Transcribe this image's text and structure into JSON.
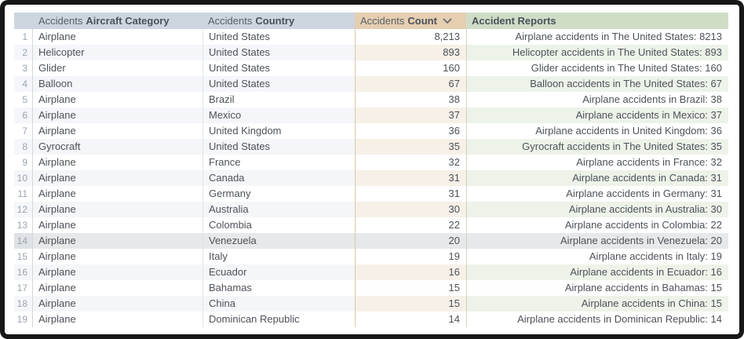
{
  "table": {
    "columns": [
      {
        "id": "index",
        "label_prefix": "",
        "label": ""
      },
      {
        "id": "aircraft_category",
        "label_prefix": "Accidents",
        "label": "Aircraft Category"
      },
      {
        "id": "country",
        "label_prefix": "Accidents",
        "label": "Country"
      },
      {
        "id": "count",
        "label_prefix": "Accidents",
        "label": "Count",
        "sort": "descending",
        "sort_icon": "chevron-down"
      },
      {
        "id": "reports",
        "label_prefix": "",
        "label": "Accident Reports"
      }
    ],
    "highlighted_row": 14,
    "rows": [
      {
        "index": 1,
        "category": "Airplane",
        "country": "United States",
        "count": "8,213",
        "report": "Airplane accidents in The United States: 8213"
      },
      {
        "index": 2,
        "category": "Helicopter",
        "country": "United States",
        "count": "893",
        "report": "Helicopter accidents in The United States: 893"
      },
      {
        "index": 3,
        "category": "Glider",
        "country": "United States",
        "count": "160",
        "report": "Glider accidents in The United States: 160"
      },
      {
        "index": 4,
        "category": "Balloon",
        "country": "United States",
        "count": "67",
        "report": "Balloon accidents in The United States: 67"
      },
      {
        "index": 5,
        "category": "Airplane",
        "country": "Brazil",
        "count": "38",
        "report": "Airplane accidents in Brazil: 38"
      },
      {
        "index": 6,
        "category": "Airplane",
        "country": "Mexico",
        "count": "37",
        "report": "Airplane accidents in Mexico: 37"
      },
      {
        "index": 7,
        "category": "Airplane",
        "country": "United Kingdom",
        "count": "36",
        "report": "Airplane accidents in United Kingdom: 36"
      },
      {
        "index": 8,
        "category": "Gyrocraft",
        "country": "United States",
        "count": "35",
        "report": "Gyrocraft accidents in The United States: 35"
      },
      {
        "index": 9,
        "category": "Airplane",
        "country": "France",
        "count": "32",
        "report": "Airplane accidents in France: 32"
      },
      {
        "index": 10,
        "category": "Airplane",
        "country": "Canada",
        "count": "31",
        "report": "Airplane accidents in Canada: 31"
      },
      {
        "index": 11,
        "category": "Airplane",
        "country": "Germany",
        "count": "31",
        "report": "Airplane accidents in Germany: 31"
      },
      {
        "index": 12,
        "category": "Airplane",
        "country": "Australia",
        "count": "30",
        "report": "Airplane accidents in Australia: 30"
      },
      {
        "index": 13,
        "category": "Airplane",
        "country": "Colombia",
        "count": "22",
        "report": "Airplane accidents in Colombia: 22"
      },
      {
        "index": 14,
        "category": "Airplane",
        "country": "Venezuela",
        "count": "20",
        "report": "Airplane accidents in Venezuela: 20"
      },
      {
        "index": 15,
        "category": "Airplane",
        "country": "Italy",
        "count": "19",
        "report": "Airplane accidents in Italy: 19"
      },
      {
        "index": 16,
        "category": "Airplane",
        "country": "Ecuador",
        "count": "16",
        "report": "Airplane accidents in Ecuador: 16"
      },
      {
        "index": 17,
        "category": "Airplane",
        "country": "Bahamas",
        "count": "15",
        "report": "Airplane accidents in Bahamas: 15"
      },
      {
        "index": 18,
        "category": "Airplane",
        "country": "China",
        "count": "15",
        "report": "Airplane accidents in China: 15"
      },
      {
        "index": 19,
        "category": "Airplane",
        "country": "Dominican Republic",
        "count": "14",
        "report": "Airplane accidents in Dominican Republic: 14"
      }
    ]
  },
  "colors": {
    "frame": "#171717",
    "sheet": "#ffffff",
    "header-bg": "#cdd6df",
    "header-count-bg": "#e6ceb1",
    "header-reports-bg": "#cfddc7",
    "header-text": "#566069",
    "header-text-bold": "#49525b",
    "text": "#4d5259",
    "muted": "#9aa4b0",
    "row-alt": "#f4f6f9",
    "row-alt-count": "#f6f0e7",
    "row-alt-reports": "#eef3ea",
    "hl": "#e6e8ea",
    "hl-idx": "#dfe2e5",
    "line-idx": "#d5d8db",
    "line-cty": "#e1e4e7",
    "line-cnt": "#dcc9ab",
    "line-rpt": "#ccd5c3"
  }
}
